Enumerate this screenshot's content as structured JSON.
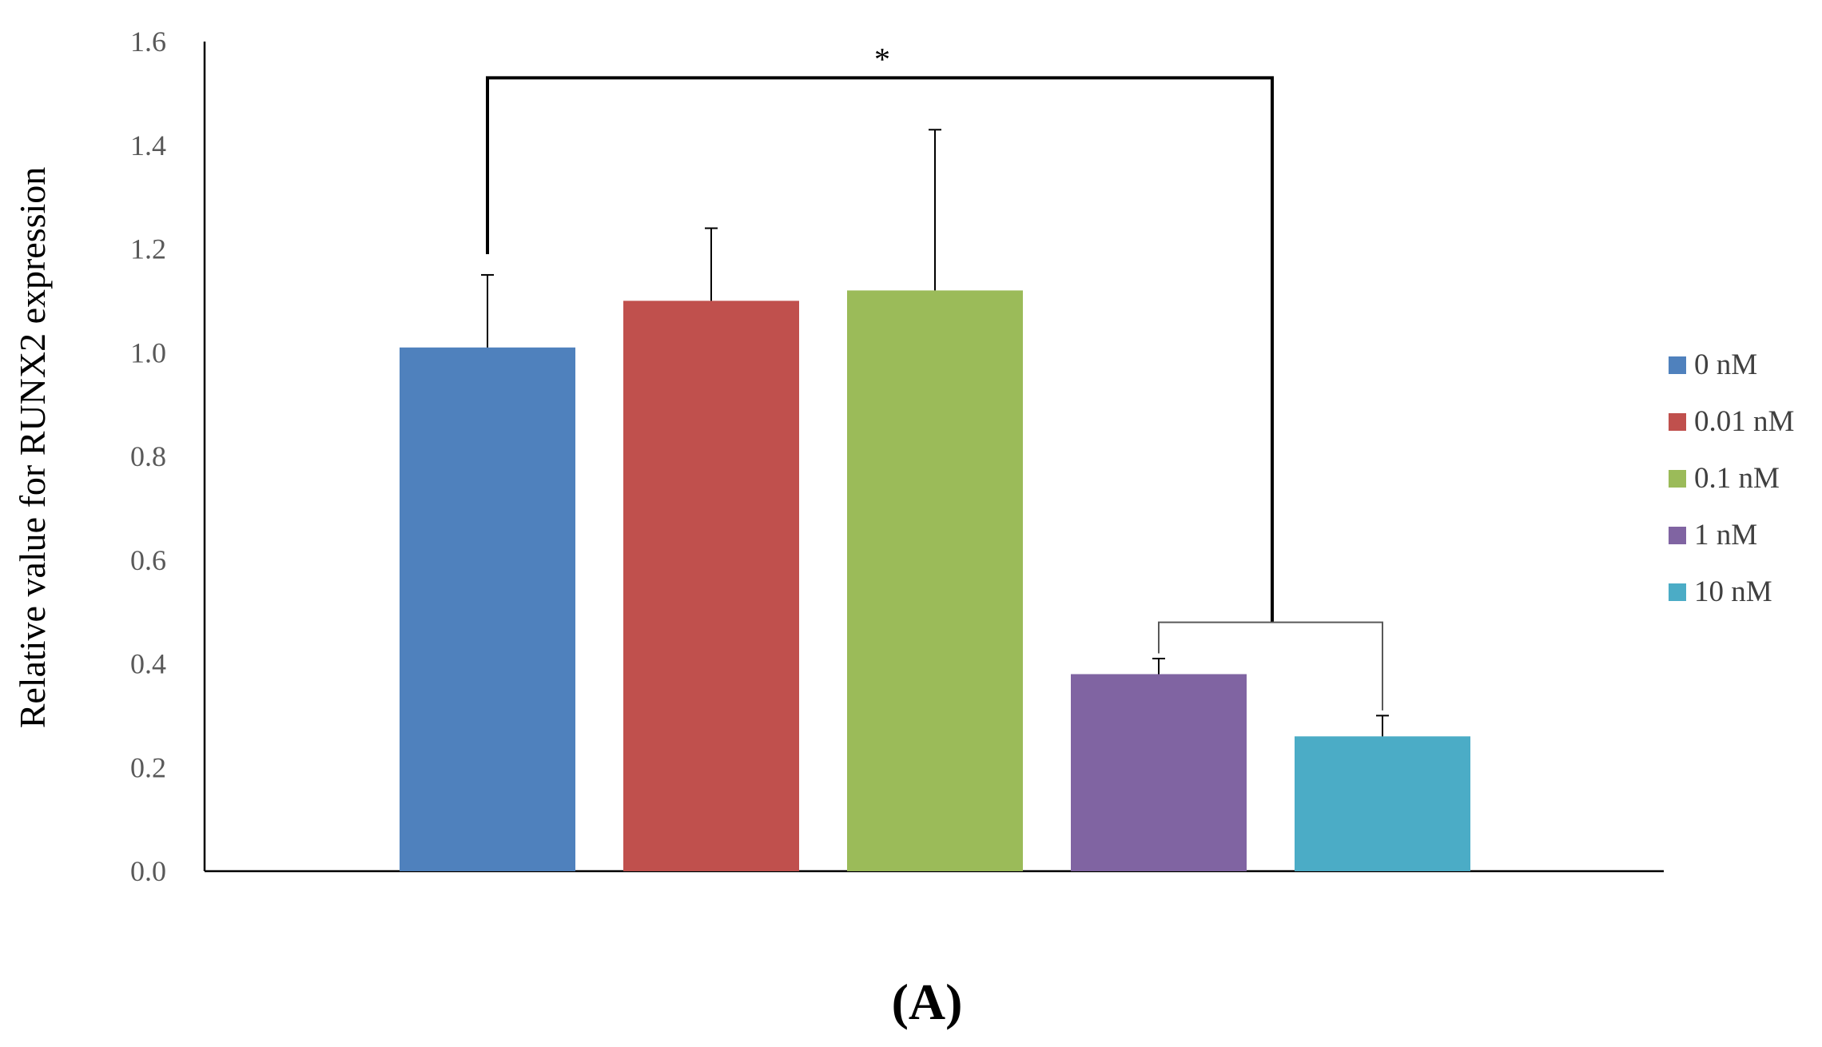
{
  "chart_data": {
    "type": "bar",
    "ylabel": "Relative value for RUNX2 expression",
    "ylim": [
      0,
      1.6
    ],
    "yticks": [
      "0.0",
      "0.2",
      "0.4",
      "0.6",
      "0.8",
      "1.0",
      "1.2",
      "1.4",
      "1.6"
    ],
    "grid": false,
    "legend_position": "right",
    "series": [
      {
        "name": "0 nM",
        "value": 1.01,
        "error": 0.14,
        "color": "#4F81BD"
      },
      {
        "name": "0.01 nM",
        "value": 1.1,
        "error": 0.14,
        "color": "#C0504D"
      },
      {
        "name": "0.1 nM",
        "value": 1.12,
        "error": 0.31,
        "color": "#9BBB59"
      },
      {
        "name": "1 nM",
        "value": 0.38,
        "error": 0.03,
        "color": "#8064A2"
      },
      {
        "name": "10 nM",
        "value": 0.26,
        "error": 0.04,
        "color": "#4BACC6"
      }
    ],
    "annotations": {
      "significance": "*",
      "bracket_top": 1.53,
      "sub_bracket": 0.48
    }
  },
  "panel_label": "(A)"
}
